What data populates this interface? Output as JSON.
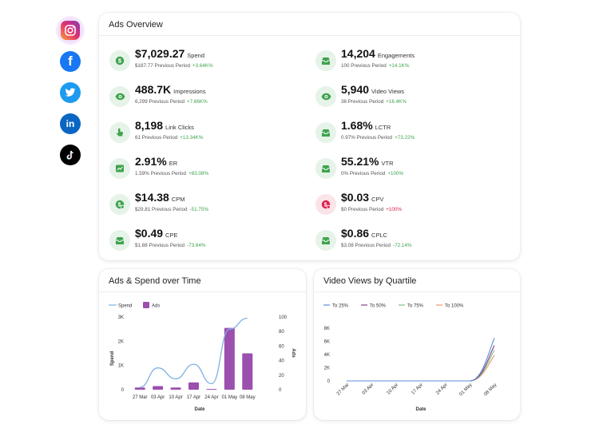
{
  "colors": {
    "accent_green": "#3fa34d",
    "icon_bg_green": "#e6f3e8",
    "negative_red": "#e0204a",
    "bar_purple": "#9b4fae",
    "line_blue": "#7fb1e3"
  },
  "social": [
    {
      "name": "instagram-icon",
      "active": true
    },
    {
      "name": "facebook-icon",
      "active": false
    },
    {
      "name": "twitter-icon",
      "active": false
    },
    {
      "name": "linkedin-icon",
      "active": false
    },
    {
      "name": "tiktok-icon",
      "active": false
    }
  ],
  "overview": {
    "title": "Ads Overview",
    "left": [
      {
        "icon": "dollar-icon",
        "value": "$7,029.27",
        "label": "Spend",
        "prev": "$187.77",
        "prev_text": "Previous Period",
        "change": "+3.64K%",
        "trend": "pos"
      },
      {
        "icon": "eye-icon",
        "value": "488.7K",
        "label": "Impressions",
        "prev": "6,299",
        "prev_text": "Previous Period",
        "change": "+7.66K%",
        "trend": "pos"
      },
      {
        "icon": "click-icon",
        "value": "8,198",
        "label": "Link Clicks",
        "prev": "61",
        "prev_text": "Previous Period",
        "change": "+13.34K%",
        "trend": "pos"
      },
      {
        "icon": "chart-icon",
        "value": "2.91%",
        "label": "ER",
        "prev": "1.59%",
        "prev_text": "Previous Period",
        "change": "+83.08%",
        "trend": "pos"
      },
      {
        "icon": "dollar-cycle-icon",
        "value": "$14.38",
        "label": "CPM",
        "prev": "$29.81",
        "prev_text": "Previous Period",
        "change": "-51.75%",
        "trend": "neg"
      },
      {
        "icon": "inbox-icon",
        "value": "$0.49",
        "label": "CPE",
        "prev": "$1.88",
        "prev_text": "Previous Period",
        "change": "-73.64%",
        "trend": "neg"
      }
    ],
    "right": [
      {
        "icon": "inbox-icon",
        "value": "14,204",
        "label": "Engagements",
        "prev": "100",
        "prev_text": "Previous Period",
        "change": "+14.1K%",
        "trend": "pos"
      },
      {
        "icon": "eye-icon",
        "value": "5,940",
        "label": "Video Views",
        "prev": "36",
        "prev_text": "Previous Period",
        "change": "+16.4K%",
        "trend": "pos"
      },
      {
        "icon": "inbox-icon",
        "value": "1.68%",
        "label": "LCTR",
        "prev": "0.97%",
        "prev_text": "Previous Period",
        "change": "+73.22%",
        "trend": "pos"
      },
      {
        "icon": "inbox-icon",
        "value": "55.21%",
        "label": "VTR",
        "prev": "0%",
        "prev_text": "Previous Period",
        "change": "+100%",
        "trend": "pos"
      },
      {
        "icon": "dollar-cycle-icon",
        "value": "$0.03",
        "label": "CPV",
        "prev": "$0",
        "prev_text": "Previous Period",
        "change": "+100%",
        "trend": "red"
      },
      {
        "icon": "inbox-icon",
        "value": "$0.86",
        "label": "CPLC",
        "prev": "$3.08",
        "prev_text": "Previous Period",
        "change": "-72.14%",
        "trend": "neg"
      }
    ]
  },
  "spend_chart": {
    "title": "Ads & Spend over Time",
    "legend": {
      "spend": "Spend",
      "ads": "Ads"
    },
    "ylabel_left": "Spend",
    "ylabel_right": "Ads",
    "xlabel": "Date",
    "left_ticks": [
      "3K",
      "2K",
      "1K",
      "0"
    ],
    "right_ticks": [
      "100",
      "80",
      "60",
      "40",
      "20",
      "0"
    ],
    "x_ticks": [
      "27 Mar",
      "03 Apr",
      "10 Apr",
      "17 Apr",
      "24 Apr",
      "01 May",
      "08 May"
    ]
  },
  "quartile_chart": {
    "title": "Video Views by Quartile",
    "legend": [
      "To 25%",
      "To 50%",
      "To 75%",
      "To 100%"
    ],
    "xlabel": "Date",
    "y_ticks": [
      "8K",
      "6K",
      "4K",
      "2K",
      "0"
    ],
    "x_ticks": [
      "27 Mar",
      "03 Apr",
      "10 Apr",
      "17 Apr",
      "24 Apr",
      "01 May",
      "08 May"
    ]
  },
  "chart_data": [
    {
      "type": "bar",
      "title": "Ads & Spend over Time",
      "xlabel": "Date",
      "categories": [
        "27 Mar",
        "03 Apr",
        "10 Apr",
        "17 Apr",
        "24 Apr",
        "01 May",
        "08 May"
      ],
      "series": [
        {
          "name": "Ads",
          "axis": "right",
          "type": "bar",
          "values": [
            3,
            5,
            3,
            10,
            1,
            85,
            50
          ]
        },
        {
          "name": "Spend",
          "axis": "left",
          "type": "line",
          "values": [
            100,
            900,
            450,
            1050,
            250,
            2500,
            2950
          ]
        }
      ],
      "ylim_left": [
        0,
        3000
      ],
      "ylim_right": [
        0,
        100
      ],
      "ylabel_left": "Spend",
      "ylabel_right": "Ads"
    },
    {
      "type": "line",
      "title": "Video Views by Quartile",
      "xlabel": "Date",
      "categories": [
        "27 Mar",
        "03 Apr",
        "10 Apr",
        "17 Apr",
        "24 Apr",
        "01 May",
        "08 May"
      ],
      "ylim": [
        0,
        8000
      ],
      "series": [
        {
          "name": "To 25%",
          "color": "#5b8fd6",
          "values": [
            0,
            0,
            0,
            0,
            0,
            0,
            6500
          ]
        },
        {
          "name": "To 50%",
          "color": "#8a3f87",
          "values": [
            0,
            0,
            0,
            0,
            0,
            0,
            5400
          ]
        },
        {
          "name": "To 75%",
          "color": "#7cc08a",
          "values": [
            0,
            0,
            0,
            0,
            0,
            0,
            4700
          ]
        },
        {
          "name": "To 100%",
          "color": "#e89a6a",
          "values": [
            0,
            0,
            0,
            0,
            0,
            0,
            3900
          ]
        }
      ]
    }
  ]
}
